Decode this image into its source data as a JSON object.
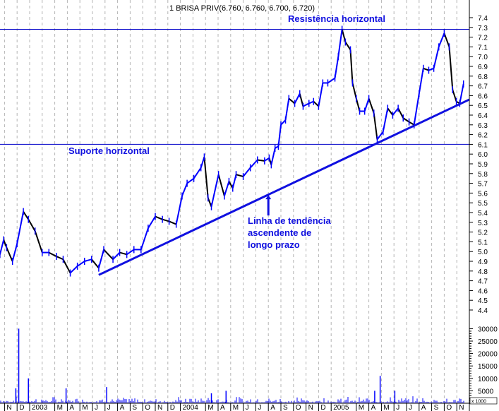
{
  "chart_data": {
    "type": "line",
    "title": "1 BRISA PRIV(6.760, 6.760, 6.700, 6.720)",
    "ylim": [
      4.4,
      7.4
    ],
    "y_ticks": [
      "4.4",
      "4.5",
      "4.6",
      "4.7",
      "4.8",
      "4.9",
      "5.0",
      "5.1",
      "5.2",
      "5.3",
      "5.4",
      "5.5",
      "5.6",
      "5.7",
      "5.8",
      "5.9",
      "6.0",
      "6.1",
      "6.2",
      "6.3",
      "6.4",
      "6.5",
      "6.6",
      "6.7",
      "6.8",
      "6.9",
      "7.0",
      "7.1",
      "7.2",
      "7.3",
      "7.4"
    ],
    "x_tick_labels": [
      {
        "label": "N",
        "date": "2002-11-01"
      },
      {
        "label": "D",
        "date": "2002-12-01"
      },
      {
        "label": "2003",
        "date": "2003-01-01"
      },
      {
        "label": "M",
        "date": "2003-03-01"
      },
      {
        "label": "A",
        "date": "2003-04-01"
      },
      {
        "label": "M",
        "date": "2003-05-01"
      },
      {
        "label": "J",
        "date": "2003-06-01"
      },
      {
        "label": "J",
        "date": "2003-07-01"
      },
      {
        "label": "A",
        "date": "2003-08-01"
      },
      {
        "label": "S",
        "date": "2003-09-01"
      },
      {
        "label": "O",
        "date": "2003-10-01"
      },
      {
        "label": "N",
        "date": "2003-11-01"
      },
      {
        "label": "D",
        "date": "2003-12-01"
      },
      {
        "label": "2004",
        "date": "2004-01-01"
      },
      {
        "label": "M",
        "date": "2004-03-01"
      },
      {
        "label": "A",
        "date": "2004-04-01"
      },
      {
        "label": "M",
        "date": "2004-05-01"
      },
      {
        "label": "J",
        "date": "2004-06-01"
      },
      {
        "label": "J",
        "date": "2004-07-01"
      },
      {
        "label": "A",
        "date": "2004-08-01"
      },
      {
        "label": "S",
        "date": "2004-09-01"
      },
      {
        "label": "O",
        "date": "2004-10-01"
      },
      {
        "label": "N",
        "date": "2004-11-01"
      },
      {
        "label": "D",
        "date": "2004-12-01"
      },
      {
        "label": "2005",
        "date": "2005-01-01"
      },
      {
        "label": "M",
        "date": "2005-03-01"
      },
      {
        "label": "A",
        "date": "2005-04-01"
      },
      {
        "label": "M",
        "date": "2005-05-01"
      },
      {
        "label": "J",
        "date": "2005-06-01"
      },
      {
        "label": "J",
        "date": "2005-07-01"
      },
      {
        "label": "A",
        "date": "2005-08-01"
      },
      {
        "label": "S",
        "date": "2005-09-01"
      },
      {
        "label": "O",
        "date": "2005-10-01"
      },
      {
        "label": "N",
        "date": "2005-11-01"
      }
    ],
    "grid": "vertical-dashed-monthly",
    "series": [
      {
        "type": "price",
        "color": "#0000ff",
        "down_color": "#000000",
        "points": [
          [
            "2002-10-20",
            4.97
          ],
          [
            "2002-10-29",
            5.12
          ],
          [
            "2002-11-06",
            5.04
          ],
          [
            "2002-11-20",
            4.9
          ],
          [
            "2002-12-01",
            5.08
          ],
          [
            "2002-12-16",
            5.41
          ],
          [
            "2002-12-28",
            5.33
          ],
          [
            "2003-01-14",
            5.21
          ],
          [
            "2003-02-01",
            4.99
          ],
          [
            "2003-02-17",
            4.99
          ],
          [
            "2003-03-05",
            4.95
          ],
          [
            "2003-03-21",
            4.92
          ],
          [
            "2003-04-08",
            4.78
          ],
          [
            "2003-04-25",
            4.85
          ],
          [
            "2003-05-12",
            4.9
          ],
          [
            "2003-05-29",
            4.92
          ],
          [
            "2003-06-16",
            4.83
          ],
          [
            "2003-06-28",
            5.02
          ],
          [
            "2003-07-20",
            4.92
          ],
          [
            "2003-08-06",
            4.99
          ],
          [
            "2003-08-23",
            4.97
          ],
          [
            "2003-09-10",
            5.02
          ],
          [
            "2003-09-27",
            5.02
          ],
          [
            "2003-10-14",
            5.24
          ],
          [
            "2003-11-01",
            5.36
          ],
          [
            "2003-11-18",
            5.33
          ],
          [
            "2003-12-04",
            5.31
          ],
          [
            "2003-12-21",
            5.28
          ],
          [
            "2004-01-05",
            5.57
          ],
          [
            "2004-01-17",
            5.7
          ],
          [
            "2004-02-03",
            5.75
          ],
          [
            "2004-02-20",
            5.86
          ],
          [
            "2004-02-28",
            5.97
          ],
          [
            "2004-03-07",
            5.55
          ],
          [
            "2004-03-15",
            5.46
          ],
          [
            "2004-04-02",
            5.79
          ],
          [
            "2004-04-16",
            5.57
          ],
          [
            "2004-04-27",
            5.72
          ],
          [
            "2004-05-06",
            5.65
          ],
          [
            "2004-05-14",
            5.79
          ],
          [
            "2004-06-01",
            5.77
          ],
          [
            "2004-06-18",
            5.86
          ],
          [
            "2004-07-05",
            5.94
          ],
          [
            "2004-07-22",
            5.93
          ],
          [
            "2004-08-03",
            5.96
          ],
          [
            "2004-08-08",
            5.89
          ],
          [
            "2004-08-17",
            6.06
          ],
          [
            "2004-08-25",
            6.08
          ],
          [
            "2004-09-01",
            6.3
          ],
          [
            "2004-09-12",
            6.35
          ],
          [
            "2004-09-20",
            6.57
          ],
          [
            "2004-10-04",
            6.52
          ],
          [
            "2004-10-16",
            6.62
          ],
          [
            "2004-10-24",
            6.49
          ],
          [
            "2004-11-08",
            6.52
          ],
          [
            "2004-11-19",
            6.54
          ],
          [
            "2004-12-01",
            6.49
          ],
          [
            "2004-12-11",
            6.73
          ],
          [
            "2004-12-23",
            6.73
          ],
          [
            "2005-01-10",
            6.78
          ],
          [
            "2005-01-18",
            7.0
          ],
          [
            "2005-01-27",
            7.28
          ],
          [
            "2005-02-05",
            7.15
          ],
          [
            "2005-02-17",
            7.07
          ],
          [
            "2005-02-22",
            6.73
          ],
          [
            "2005-03-01",
            6.57
          ],
          [
            "2005-03-09",
            6.44
          ],
          [
            "2005-03-21",
            6.44
          ],
          [
            "2005-04-01",
            6.57
          ],
          [
            "2005-04-13",
            6.42
          ],
          [
            "2005-04-21",
            6.15
          ],
          [
            "2005-05-05",
            6.23
          ],
          [
            "2005-05-16",
            6.47
          ],
          [
            "2005-05-28",
            6.4
          ],
          [
            "2005-06-11",
            6.47
          ],
          [
            "2005-06-23",
            6.37
          ],
          [
            "2005-07-07",
            6.33
          ],
          [
            "2005-07-19",
            6.3
          ],
          [
            "2005-08-01",
            6.62
          ],
          [
            "2005-08-11",
            6.88
          ],
          [
            "2005-08-24",
            6.86
          ],
          [
            "2005-09-06",
            6.88
          ],
          [
            "2005-09-18",
            7.1
          ],
          [
            "2005-10-01",
            7.24
          ],
          [
            "2005-10-13",
            7.1
          ],
          [
            "2005-10-21",
            6.66
          ],
          [
            "2005-10-30",
            6.54
          ],
          [
            "2005-11-08",
            6.52
          ],
          [
            "2005-11-17",
            6.72
          ]
        ]
      }
    ],
    "overlays": {
      "resistance_level": 7.28,
      "support_level": 6.1,
      "trendline": [
        [
          "2003-06-16",
          4.76
        ],
        [
          "2005-12-01",
          6.56
        ]
      ],
      "arrow": {
        "date": "2004-08-01",
        "from": 5.37,
        "to": 5.58
      }
    },
    "annotations": {
      "resistance": "Resistência horizontal",
      "support": "Suporte horizontal",
      "trend_line1": "Linha de tendência",
      "trend_line2": "ascendente de",
      "trend_line3": "longo prazo"
    },
    "volume": {
      "unit_label": "x 1000",
      "ticks": [
        "5000",
        "10000",
        "15000",
        "20000",
        "25000",
        "30000"
      ],
      "ylim": [
        0,
        30000
      ],
      "spikes": [
        [
          "2002-11-28",
          6000
        ],
        [
          "2002-12-05",
          30000
        ],
        [
          "2002-12-28",
          10000
        ],
        [
          "2003-03-28",
          6000
        ],
        [
          "2003-07-05",
          6500
        ],
        [
          "2004-03-15",
          4000
        ],
        [
          "2004-04-20",
          5000
        ],
        [
          "2005-04-15",
          5000
        ],
        [
          "2005-04-28",
          11000
        ],
        [
          "2005-06-03",
          5000
        ]
      ],
      "color": "#0000ff"
    },
    "colors": {
      "line": "#0000ff",
      "annotation": "#1010e0",
      "grid": "#b4b4b4"
    }
  }
}
